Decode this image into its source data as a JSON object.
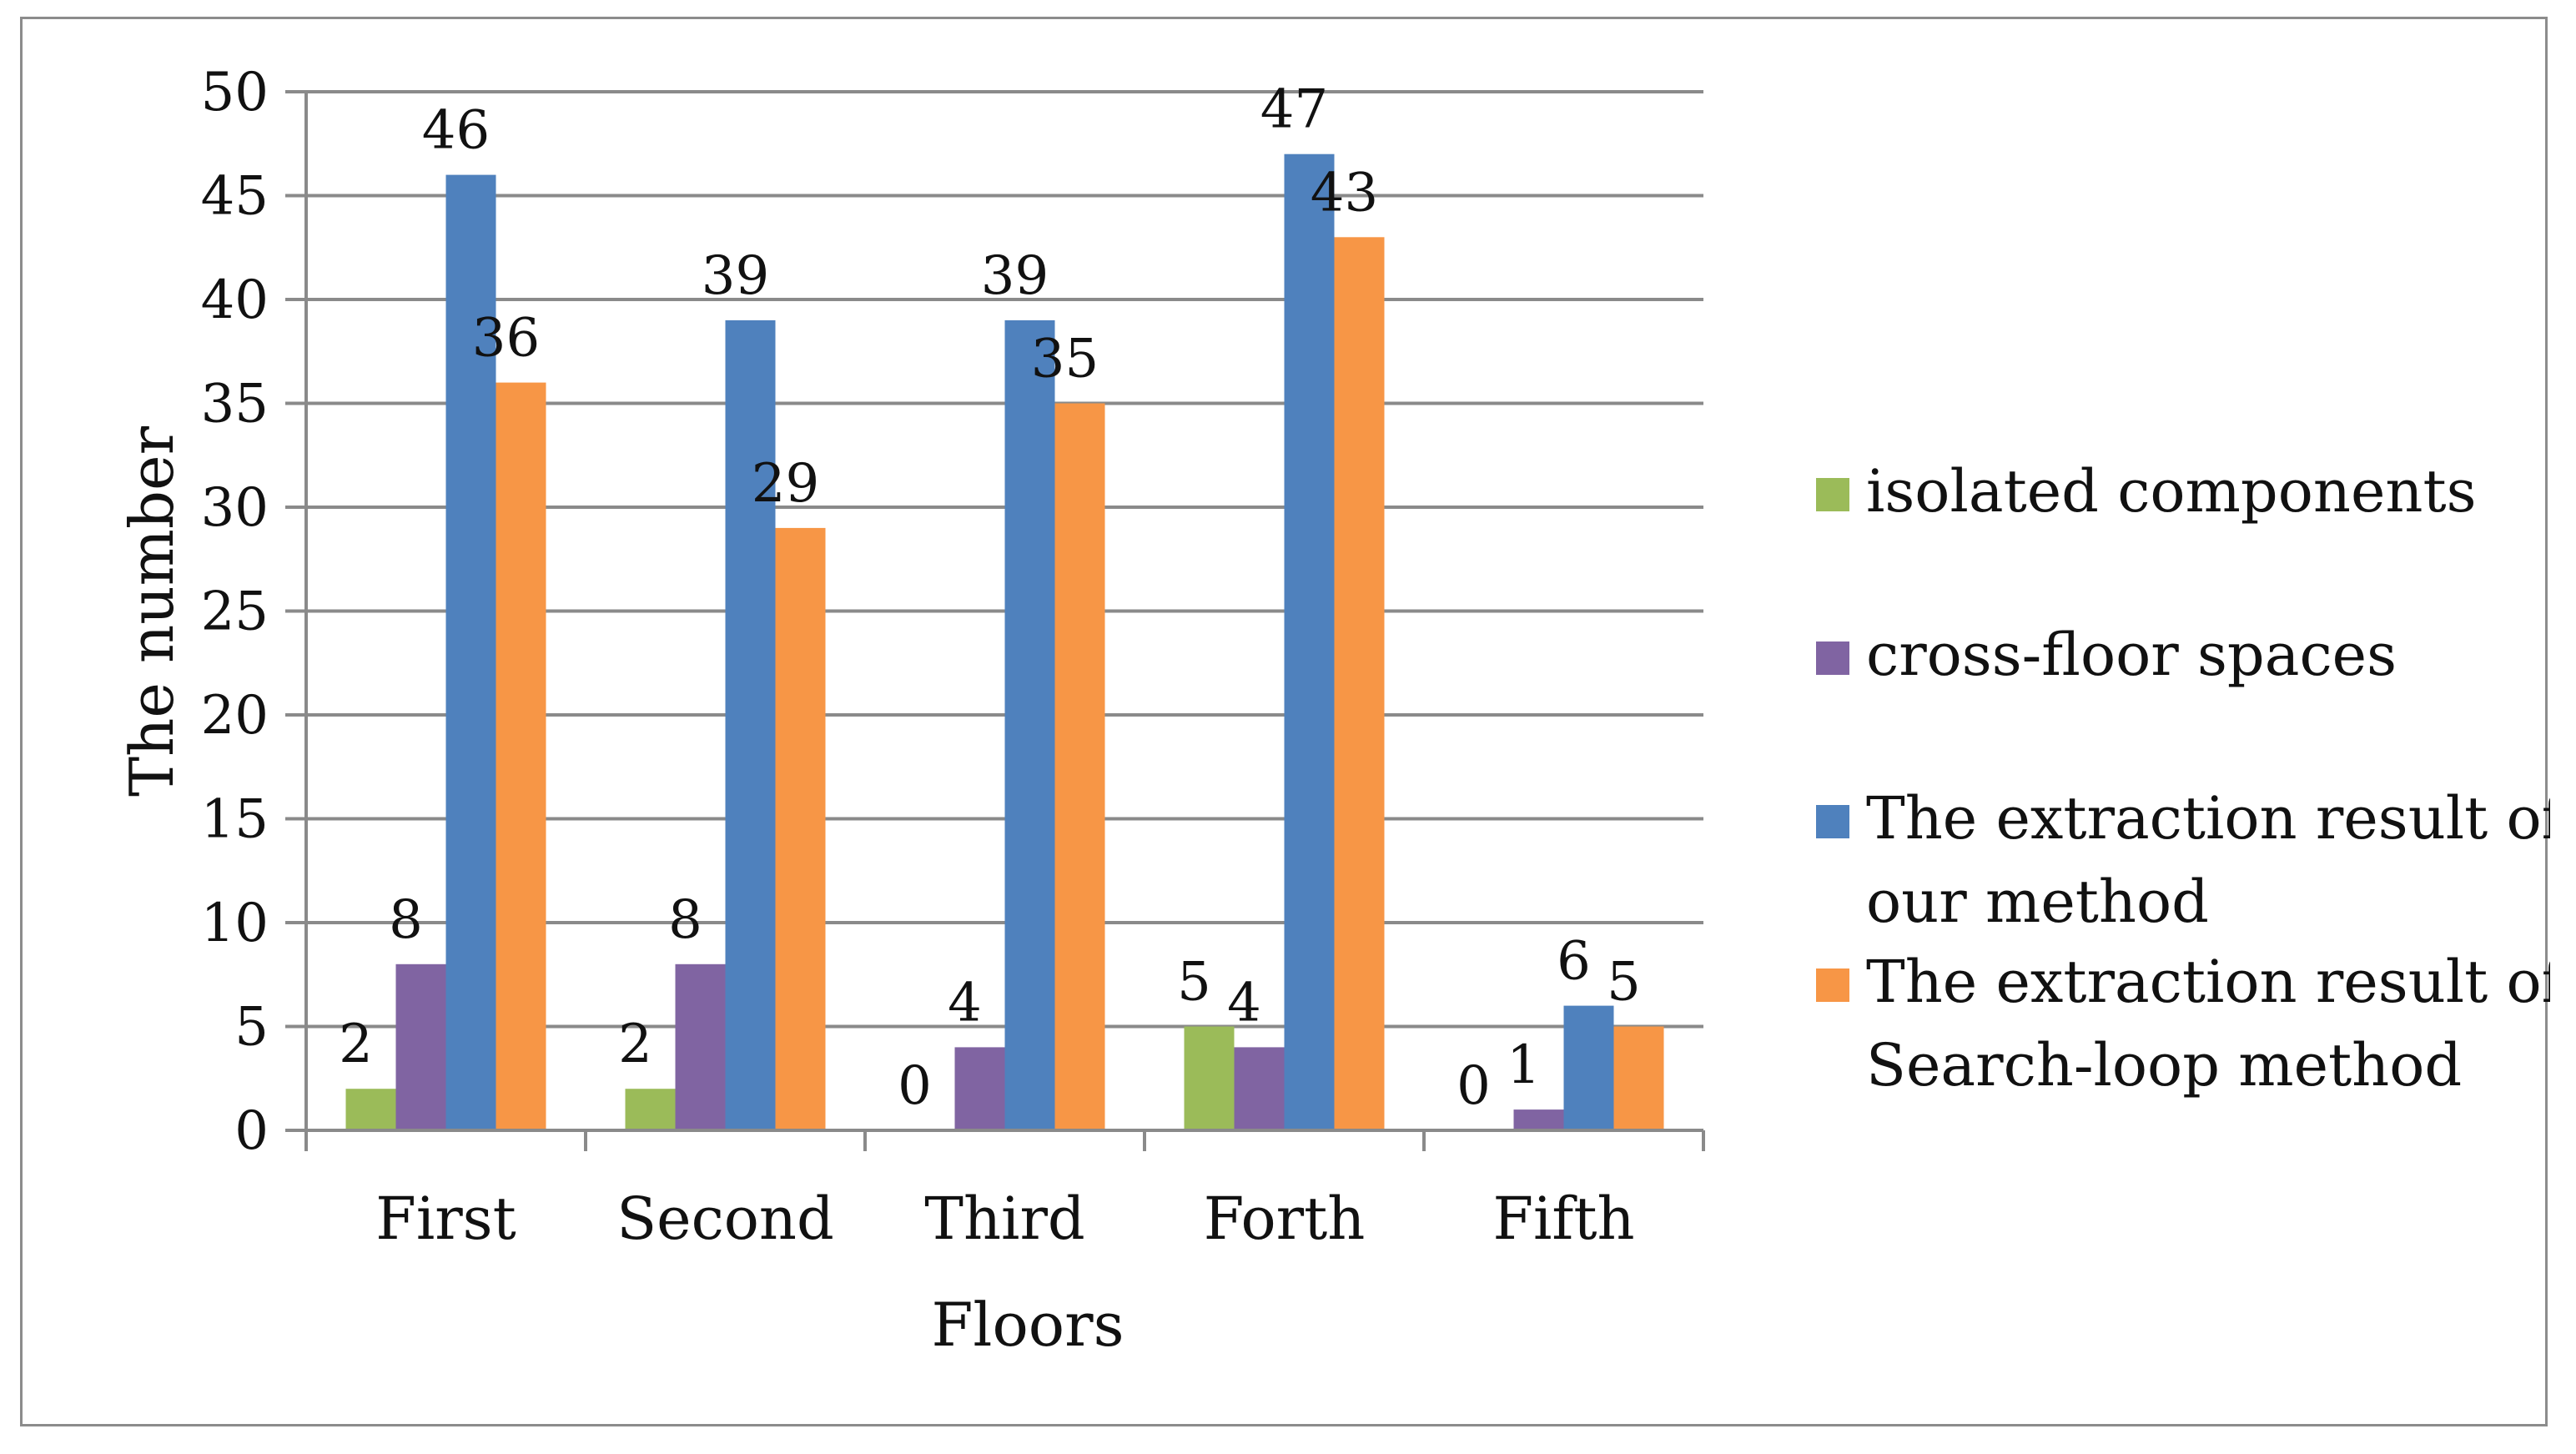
{
  "chart_data": {
    "type": "bar",
    "title": "",
    "xlabel": "Floors",
    "ylabel": "The number",
    "ylim": [
      0,
      50
    ],
    "yticks": [
      0,
      5,
      10,
      15,
      20,
      25,
      30,
      35,
      40,
      45,
      50
    ],
    "grid": true,
    "legend_position": "right",
    "categories": [
      "First",
      "Second",
      "Third",
      "Forth",
      "Fifth"
    ],
    "series": [
      {
        "name": "isolated components",
        "legend_lines": [
          "isolated components"
        ],
        "color": "#9BBB59",
        "values": [
          2,
          2,
          0,
          5,
          0
        ]
      },
      {
        "name": "cross-floor spaces",
        "legend_lines": [
          "cross-floor spaces"
        ],
        "color": "#8064A2",
        "values": [
          8,
          8,
          4,
          4,
          1
        ]
      },
      {
        "name": "The extraction result of our method",
        "legend_lines": [
          "The extraction result of",
          "our method"
        ],
        "color": "#4F81BD",
        "values": [
          46,
          39,
          39,
          47,
          6
        ]
      },
      {
        "name": "The extraction result of Search-loop method",
        "legend_lines": [
          "The extraction result of",
          "Search-loop method"
        ],
        "color": "#F79646",
        "values": [
          36,
          29,
          35,
          43,
          5
        ]
      }
    ]
  }
}
